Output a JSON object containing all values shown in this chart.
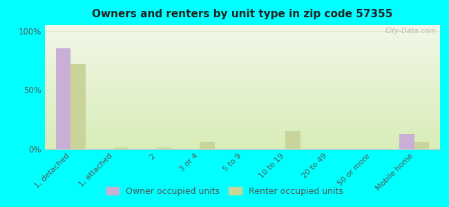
{
  "title": "Owners and renters by unit type in zip code 57355",
  "categories": [
    "1, detached",
    "1, attached",
    "2",
    "3 or 4",
    "5 to 9",
    "10 to 19",
    "20 to 49",
    "50 or more",
    "Mobile home"
  ],
  "owner_values": [
    85,
    0,
    0,
    0,
    0,
    0,
    0,
    0,
    13
  ],
  "renter_values": [
    72,
    1,
    1,
    6,
    0,
    15,
    0,
    0,
    6
  ],
  "owner_color": "#c9aed6",
  "renter_color": "#c8d49a",
  "background_color": "#00ffff",
  "grad_top": "#f2f7e8",
  "grad_bottom": "#d8edb8",
  "ylabel_ticks": [
    0,
    50,
    100
  ],
  "ylabel_labels": [
    "0%",
    "50%",
    "100%"
  ],
  "bar_width": 0.35,
  "watermark": "City-Data.com",
  "legend_owner": "Owner occupied units",
  "legend_renter": "Renter occupied units",
  "grid_color": "#e0e8c8",
  "spine_color": "#cccccc"
}
